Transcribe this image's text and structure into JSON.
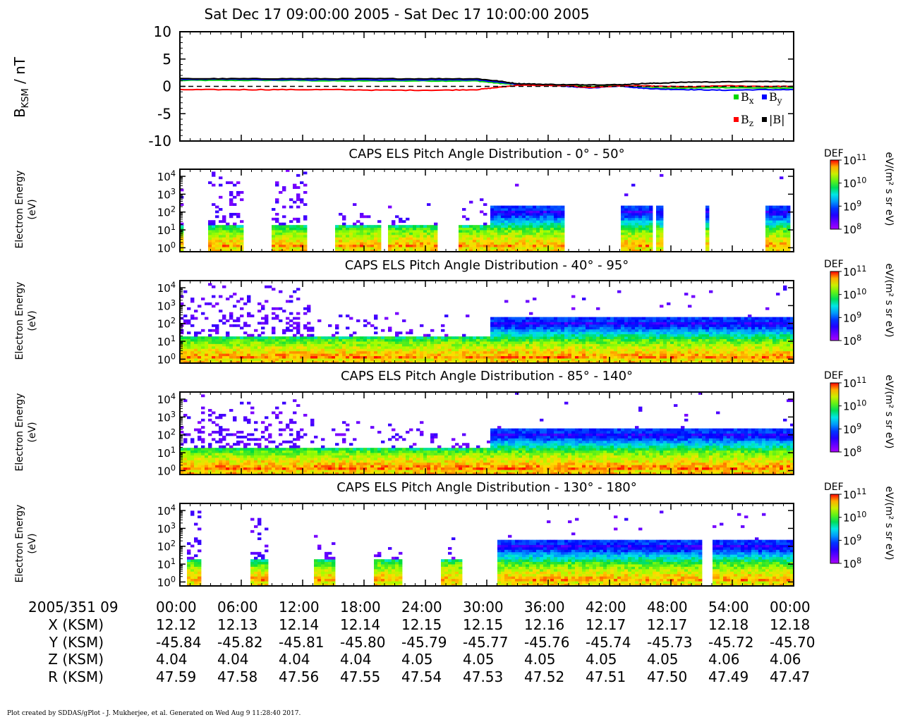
{
  "header": {
    "title": "Sat Dec 17 09:00:00 2005 - Sat Dec 17 10:00:00 2005"
  },
  "chart_data": [
    {
      "type": "line",
      "ylabel": "B",
      "ylabel_sub": "KSM",
      "ylabel_unit": "/ nT",
      "ylim": [
        -10,
        10
      ],
      "yticks": [
        "10",
        "5",
        "0",
        "-5",
        "-10"
      ],
      "xlim_minutes": [
        0,
        60
      ],
      "zero_line": "dashed",
      "legend_placement": "bottom-right",
      "legend": [
        {
          "label": "B",
          "sub": "x",
          "color": "#00d800"
        },
        {
          "label": "B",
          "sub": "y",
          "color": "#0000ff"
        },
        {
          "label": "B",
          "sub": "z",
          "color": "#ff0000"
        },
        {
          "label": "|B|",
          "sub": "",
          "color": "#000000"
        }
      ],
      "series": [
        {
          "name": "Bx",
          "color": "#00d800",
          "x": [
            0,
            5,
            10,
            15,
            20,
            25,
            29,
            31,
            33,
            35,
            38,
            40,
            43,
            45,
            47,
            50,
            53,
            57,
            60
          ],
          "y": [
            1.1,
            1.1,
            1.1,
            1.0,
            1.0,
            1.0,
            1.0,
            0.6,
            0.3,
            0.3,
            0.2,
            -0.1,
            0.2,
            -0.2,
            -0.3,
            -0.3,
            -0.2,
            -0.3,
            -0.3
          ]
        },
        {
          "name": "By",
          "color": "#0000ff",
          "x": [
            0,
            5,
            10,
            15,
            20,
            25,
            29,
            31,
            33,
            35,
            38,
            40,
            43,
            45,
            47,
            50,
            53,
            57,
            60
          ],
          "y": [
            1.3,
            1.3,
            1.2,
            1.2,
            1.2,
            1.2,
            1.2,
            0.8,
            0.4,
            0.3,
            0.0,
            -0.3,
            0.1,
            -0.3,
            -0.5,
            -0.6,
            -0.7,
            -0.6,
            -0.6
          ]
        },
        {
          "name": "Bz",
          "color": "#ff0000",
          "x": [
            0,
            5,
            10,
            15,
            20,
            25,
            29,
            31,
            33,
            35,
            38,
            40,
            43,
            45,
            47,
            50,
            53,
            57,
            60
          ],
          "y": [
            -0.6,
            -0.6,
            -0.6,
            -0.6,
            -0.7,
            -0.7,
            -0.6,
            -0.2,
            0.2,
            0.2,
            0.1,
            -0.2,
            0.1,
            0.1,
            0.0,
            -0.1,
            0.1,
            0.0,
            0.0
          ]
        },
        {
          "name": "|B|",
          "color": "#000000",
          "x": [
            0,
            5,
            10,
            15,
            20,
            25,
            29,
            31,
            33,
            35,
            38,
            40,
            43,
            45,
            47,
            50,
            53,
            57,
            60
          ],
          "y": [
            1.4,
            1.4,
            1.4,
            1.4,
            1.4,
            1.4,
            1.4,
            1.0,
            0.5,
            0.4,
            0.3,
            0.3,
            0.3,
            0.5,
            0.6,
            0.8,
            0.8,
            0.9,
            0.9
          ]
        }
      ]
    },
    {
      "type": "heatmap",
      "title": "CAPS ELS Pitch Angle Distribution - 0° - 50°",
      "ylabel": "Electron Energy",
      "ylabel_unit": "(eV)",
      "yscale": "log",
      "ylim_eV": [
        0.6,
        25000
      ],
      "yticks": [
        "10^4",
        "10^3",
        "10^2",
        "10^1",
        "10^0"
      ],
      "colorbar": {
        "label": "DEF",
        "unit": "eV/(m² s sr eV)",
        "range": [
          100000000.0,
          100000000000.0
        ],
        "ticks": [
          "10^11",
          "10^10",
          "10^9",
          "10^8"
        ]
      },
      "coverage_minutes": [
        [
          0,
          0.3
        ],
        [
          2.6,
          6.2
        ],
        [
          9.0,
          12.3
        ],
        [
          15.1,
          19.5
        ],
        [
          20.3,
          25.1
        ],
        [
          27.4,
          37.6
        ],
        [
          43.2,
          46.1
        ],
        [
          46.6,
          47.3
        ],
        [
          51.5,
          51.7
        ],
        [
          57.4,
          59.5
        ]
      ],
      "low_energy_peak_log_eV": 0.25,
      "upper_population_log_eV": 2.2
    },
    {
      "type": "heatmap",
      "title": "CAPS ELS Pitch Angle Distribution - 40° - 95°",
      "ylabel": "Electron Energy",
      "ylabel_unit": "(eV)",
      "yscale": "log",
      "ylim_eV": [
        0.6,
        25000
      ],
      "yticks": [
        "10^4",
        "10^3",
        "10^2",
        "10^1",
        "10^0"
      ],
      "colorbar": {
        "label": "DEF",
        "unit": "eV/(m² s sr eV)",
        "range": [
          100000000.0,
          100000000000.0
        ],
        "ticks": [
          "10^11",
          "10^10",
          "10^9",
          "10^8"
        ]
      },
      "coverage_minutes": [
        [
          0,
          60
        ]
      ],
      "low_energy_peak_log_eV": 0.3,
      "upper_population_log_eV": 2.0
    },
    {
      "type": "heatmap",
      "title": "CAPS ELS Pitch Angle Distribution - 85° - 140°",
      "ylabel": "Electron Energy",
      "ylabel_unit": "(eV)",
      "yscale": "log",
      "ylim_eV": [
        0.6,
        25000
      ],
      "yticks": [
        "10^4",
        "10^3",
        "10^2",
        "10^1",
        "10^0"
      ],
      "colorbar": {
        "label": "DEF",
        "unit": "eV/(m² s sr eV)",
        "range": [
          100000000.0,
          100000000000.0
        ],
        "ticks": [
          "10^11",
          "10^10",
          "10^9",
          "10^8"
        ]
      },
      "coverage_minutes": [
        [
          0,
          60
        ]
      ],
      "low_energy_peak_log_eV": 0.35,
      "upper_population_log_eV": 1.9
    },
    {
      "type": "heatmap",
      "title": "CAPS ELS Pitch Angle Distribution - 130° - 180°",
      "ylabel": "Electron Energy",
      "ylabel_unit": "(eV)",
      "yscale": "log",
      "ylim_eV": [
        0.6,
        25000
      ],
      "yticks": [
        "10^4",
        "10^3",
        "10^2",
        "10^1",
        "10^0"
      ],
      "colorbar": {
        "label": "DEF",
        "unit": "eV/(m² s sr eV)",
        "range": [
          100000000.0,
          100000000000.0
        ],
        "ticks": [
          "10^11",
          "10^10",
          "10^9",
          "10^8"
        ]
      },
      "coverage_minutes": [
        [
          0.8,
          2.2
        ],
        [
          7.0,
          8.6
        ],
        [
          13.0,
          15.2
        ],
        [
          19.0,
          21.7
        ],
        [
          25.5,
          27.5
        ],
        [
          31.0,
          51.2
        ],
        [
          52.0,
          60
        ]
      ],
      "low_energy_peak_log_eV": 0.25,
      "upper_population_log_eV": 1.8
    }
  ],
  "ephemeris": {
    "time_label": "2005/351 09",
    "times": [
      "00:00",
      "06:00",
      "12:00",
      "18:00",
      "24:00",
      "30:00",
      "36:00",
      "42:00",
      "48:00",
      "54:00",
      "00:00"
    ],
    "rows": [
      {
        "label": "X (KSM)",
        "values": [
          "12.12",
          "12.13",
          "12.14",
          "12.14",
          "12.15",
          "12.15",
          "12.16",
          "12.17",
          "12.17",
          "12.18",
          "12.18"
        ]
      },
      {
        "label": "Y (KSM)",
        "values": [
          "-45.84",
          "-45.82",
          "-45.81",
          "-45.80",
          "-45.79",
          "-45.77",
          "-45.76",
          "-45.74",
          "-45.73",
          "-45.72",
          "-45.70"
        ]
      },
      {
        "label": "Z (KSM)",
        "values": [
          "4.04",
          "4.04",
          "4.04",
          "4.04",
          "4.05",
          "4.05",
          "4.05",
          "4.05",
          "4.05",
          "4.06",
          "4.06"
        ]
      },
      {
        "label": "R (KSM)",
        "values": [
          "47.59",
          "47.58",
          "47.56",
          "47.55",
          "47.54",
          "47.53",
          "47.52",
          "47.51",
          "47.50",
          "47.49",
          "47.47"
        ]
      }
    ]
  },
  "footer": {
    "credit": "Plot created by SDDAS/gPlot - J. Mukherjee, et al.  Generated on Wed Aug 9 11:28:40 2017."
  }
}
